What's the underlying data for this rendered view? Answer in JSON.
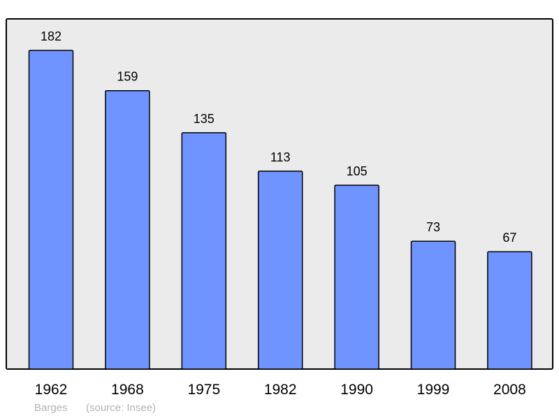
{
  "chart_data": {
    "type": "bar",
    "categories": [
      "1962",
      "1968",
      "1975",
      "1982",
      "1990",
      "1999",
      "2008"
    ],
    "values": [
      182,
      159,
      135,
      113,
      105,
      73,
      67
    ],
    "title": "",
    "xlabel": "",
    "ylabel": "",
    "ylim": [
      0,
      200
    ],
    "grid": false,
    "data_labels": true,
    "colors": {
      "bar": "#7094ff",
      "plot_background": "#ebebeb",
      "border": "#000000"
    }
  },
  "footer": {
    "place": "Barges",
    "source": "(source: Insee)"
  }
}
